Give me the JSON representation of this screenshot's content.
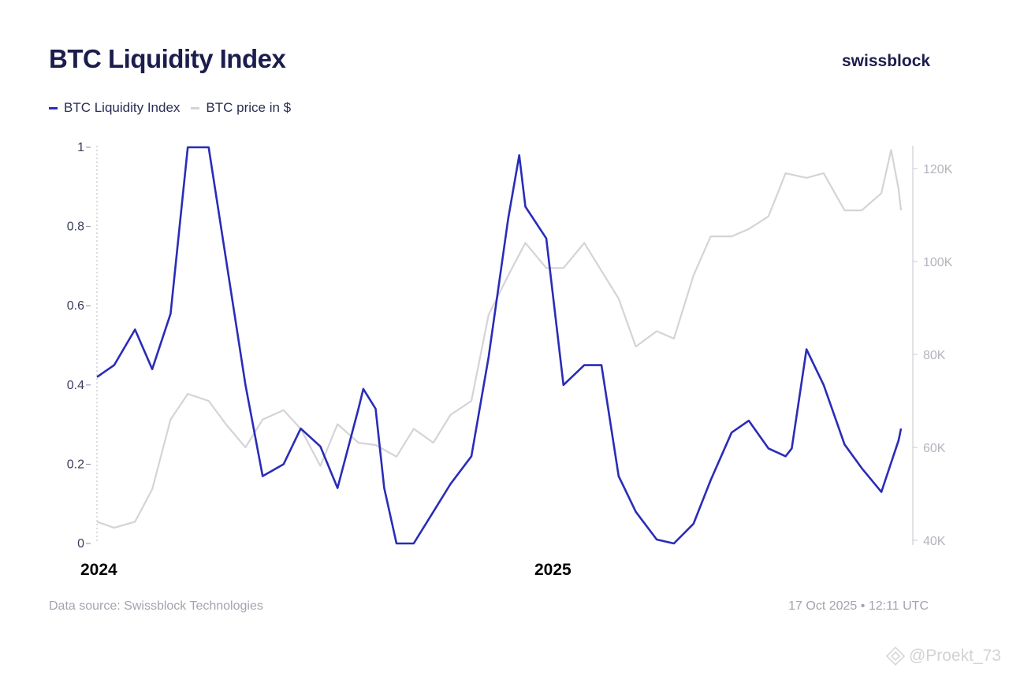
{
  "header": {
    "title": "BTC Liquidity Index",
    "brand": "swissblock"
  },
  "footer": {
    "source": "Data source: Swissblock Technologies",
    "timestamp": "17 Oct 2025 • 12:11 UTC"
  },
  "watermark": {
    "text": "@Proekt_73",
    "icon": "binance-diamond-icon"
  },
  "chart_data": {
    "type": "line",
    "title": "BTC Liquidity Index",
    "grid": false,
    "legend_placement": "top-left",
    "x_tick_labels": [
      "2024",
      "2025"
    ],
    "left_axis": {
      "ticks": [
        0,
        0.2,
        0.4,
        0.6,
        0.8,
        1
      ],
      "tick_labels": [
        "0",
        "0.2",
        "0.4",
        "0.6",
        "0.8",
        "1"
      ],
      "range": [
        0,
        1
      ]
    },
    "right_axis": {
      "ticks": [
        40,
        60,
        80,
        100,
        120
      ],
      "tick_labels": [
        "40K",
        "60K",
        "80K",
        "100K",
        "120K"
      ],
      "range": [
        40,
        124
      ]
    },
    "series": [
      {
        "name": "BTC Liquidity Index",
        "axis": "left",
        "color": "#2a2cb8",
        "points": [
          [
            "2024-01-01",
            0.42
          ],
          [
            "2024-01-15",
            0.45
          ],
          [
            "2024-02-01",
            0.54
          ],
          [
            "2024-02-15",
            0.44
          ],
          [
            "2024-03-01",
            0.58
          ],
          [
            "2024-03-15",
            1.0
          ],
          [
            "2024-04-01",
            1.0
          ],
          [
            "2024-04-15",
            0.72
          ],
          [
            "2024-05-01",
            0.4
          ],
          [
            "2024-05-15",
            0.17
          ],
          [
            "2024-06-01",
            0.2
          ],
          [
            "2024-06-15",
            0.29
          ],
          [
            "2024-07-01",
            0.245
          ],
          [
            "2024-07-15",
            0.14
          ],
          [
            "2024-08-01",
            0.34
          ],
          [
            "2024-08-05",
            0.39
          ],
          [
            "2024-08-15",
            0.34
          ],
          [
            "2024-08-22",
            0.14
          ],
          [
            "2024-09-01",
            0.0
          ],
          [
            "2024-09-15",
            0.0
          ],
          [
            "2024-10-01",
            0.08
          ],
          [
            "2024-10-15",
            0.15
          ],
          [
            "2024-11-01",
            0.22
          ],
          [
            "2024-11-15",
            0.47
          ],
          [
            "2024-12-01",
            0.82
          ],
          [
            "2024-12-10",
            0.98
          ],
          [
            "2024-12-15",
            0.85
          ],
          [
            "2025-01-01",
            0.77
          ],
          [
            "2025-01-15",
            0.4
          ],
          [
            "2025-02-01",
            0.45
          ],
          [
            "2025-02-15",
            0.45
          ],
          [
            "2025-03-01",
            0.17
          ],
          [
            "2025-03-15",
            0.08
          ],
          [
            "2025-04-01",
            0.01
          ],
          [
            "2025-04-15",
            0.0
          ],
          [
            "2025-05-01",
            0.05
          ],
          [
            "2025-05-15",
            0.16
          ],
          [
            "2025-06-01",
            0.28
          ],
          [
            "2025-06-15",
            0.31
          ],
          [
            "2025-07-01",
            0.24
          ],
          [
            "2025-07-15",
            0.22
          ],
          [
            "2025-07-20",
            0.24
          ],
          [
            "2025-08-01",
            0.49
          ],
          [
            "2025-08-15",
            0.4
          ],
          [
            "2025-09-01",
            0.25
          ],
          [
            "2025-09-15",
            0.19
          ],
          [
            "2025-10-01",
            0.13
          ],
          [
            "2025-10-15",
            0.26
          ],
          [
            "2025-10-17",
            0.29
          ]
        ]
      },
      {
        "name": "BTC price in $",
        "axis": "right",
        "color": "#d4d4d8",
        "points": [
          [
            "2024-01-01",
            44
          ],
          [
            "2024-01-15",
            42.7
          ],
          [
            "2024-02-01",
            44
          ],
          [
            "2024-02-15",
            51
          ],
          [
            "2024-03-01",
            66
          ],
          [
            "2024-03-15",
            71.5
          ],
          [
            "2024-04-01",
            70
          ],
          [
            "2024-04-15",
            65
          ],
          [
            "2024-05-01",
            60
          ],
          [
            "2024-05-15",
            66
          ],
          [
            "2024-06-01",
            68
          ],
          [
            "2024-06-15",
            64
          ],
          [
            "2024-07-01",
            56
          ],
          [
            "2024-07-15",
            65
          ],
          [
            "2024-08-01",
            61
          ],
          [
            "2024-08-15",
            60.5
          ],
          [
            "2024-09-01",
            58
          ],
          [
            "2024-09-15",
            64
          ],
          [
            "2024-10-01",
            61
          ],
          [
            "2024-10-15",
            67
          ],
          [
            "2024-11-01",
            70
          ],
          [
            "2024-11-15",
            88.5
          ],
          [
            "2024-12-01",
            97
          ],
          [
            "2024-12-15",
            104
          ],
          [
            "2025-01-01",
            98.6
          ],
          [
            "2025-01-15",
            98.6
          ],
          [
            "2025-02-01",
            104
          ],
          [
            "2025-02-15",
            98
          ],
          [
            "2025-03-01",
            92
          ],
          [
            "2025-03-15",
            81.7
          ],
          [
            "2025-04-01",
            85
          ],
          [
            "2025-04-15",
            83.4
          ],
          [
            "2025-05-01",
            97
          ],
          [
            "2025-05-15",
            105.4
          ],
          [
            "2025-06-01",
            105.4
          ],
          [
            "2025-06-15",
            107
          ],
          [
            "2025-07-01",
            109.7
          ],
          [
            "2025-07-15",
            119
          ],
          [
            "2025-08-01",
            118
          ],
          [
            "2025-08-15",
            119
          ],
          [
            "2025-09-01",
            111
          ],
          [
            "2025-09-15",
            111
          ],
          [
            "2025-10-01",
            114.7
          ],
          [
            "2025-10-09",
            124
          ],
          [
            "2025-10-15",
            115.6
          ],
          [
            "2025-10-17",
            111
          ]
        ]
      }
    ]
  }
}
